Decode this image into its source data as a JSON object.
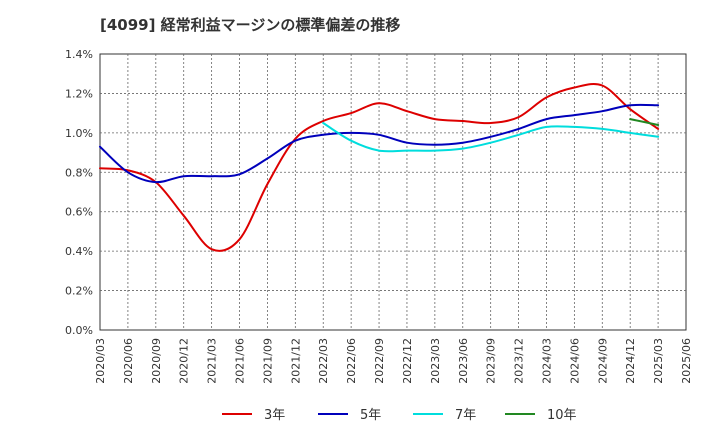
{
  "chart_data": {
    "type": "line",
    "title": "[4099]  経常利益マージンの標準偏差の推移",
    "xlabel": "",
    "ylabel": "",
    "ylim": [
      0,
      1.4
    ],
    "yticks": [
      "0.0%",
      "0.2%",
      "0.4%",
      "0.6%",
      "0.8%",
      "1.0%",
      "1.2%",
      "1.4%"
    ],
    "x_ticks": [
      "2020/03",
      "2020/06",
      "2020/09",
      "2020/12",
      "2021/03",
      "2021/06",
      "2021/09",
      "2021/12",
      "2022/03",
      "2022/06",
      "2022/09",
      "2022/12",
      "2023/03",
      "2023/06",
      "2023/09",
      "2023/12",
      "2024/03",
      "2024/06",
      "2024/09",
      "2024/12",
      "2025/03",
      "2025/06"
    ],
    "grid": true,
    "legend_position": "bottom",
    "series": [
      {
        "name": "3年",
        "color": "#dd0000",
        "x": [
          "2020/03",
          "2020/06",
          "2020/09",
          "2020/12",
          "2021/03",
          "2021/06",
          "2021/09",
          "2021/12",
          "2022/03",
          "2022/06",
          "2022/09",
          "2022/12",
          "2023/03",
          "2023/06",
          "2023/09",
          "2023/12",
          "2024/03",
          "2024/06",
          "2024/09",
          "2024/12",
          "2025/03"
        ],
        "values": [
          0.82,
          0.81,
          0.75,
          0.58,
          0.41,
          0.46,
          0.74,
          0.97,
          1.06,
          1.1,
          1.15,
          1.11,
          1.07,
          1.06,
          1.05,
          1.08,
          1.18,
          1.23,
          1.24,
          1.12,
          1.02
        ]
      },
      {
        "name": "5年",
        "color": "#0000bb",
        "x": [
          "2020/03",
          "2020/06",
          "2020/09",
          "2020/12",
          "2021/03",
          "2021/06",
          "2021/09",
          "2021/12",
          "2022/03",
          "2022/06",
          "2022/09",
          "2022/12",
          "2023/03",
          "2023/06",
          "2023/09",
          "2023/12",
          "2024/03",
          "2024/06",
          "2024/09",
          "2024/12",
          "2025/03"
        ],
        "values": [
          0.93,
          0.8,
          0.75,
          0.78,
          0.78,
          0.79,
          0.87,
          0.96,
          0.99,
          1.0,
          0.99,
          0.95,
          0.94,
          0.95,
          0.98,
          1.02,
          1.07,
          1.09,
          1.11,
          1.14,
          1.14
        ]
      },
      {
        "name": "7年",
        "color": "#00dddd",
        "x": [
          "2022/03",
          "2022/06",
          "2022/09",
          "2022/12",
          "2023/03",
          "2023/06",
          "2023/09",
          "2023/12",
          "2024/03",
          "2024/06",
          "2024/09",
          "2024/12",
          "2025/03"
        ],
        "values": [
          1.05,
          0.96,
          0.91,
          0.91,
          0.91,
          0.92,
          0.95,
          0.99,
          1.03,
          1.03,
          1.02,
          1.0,
          0.98
        ]
      },
      {
        "name": "10年",
        "color": "#228822",
        "x": [
          "2024/12",
          "2025/03"
        ],
        "values": [
          1.07,
          1.04
        ]
      }
    ]
  }
}
